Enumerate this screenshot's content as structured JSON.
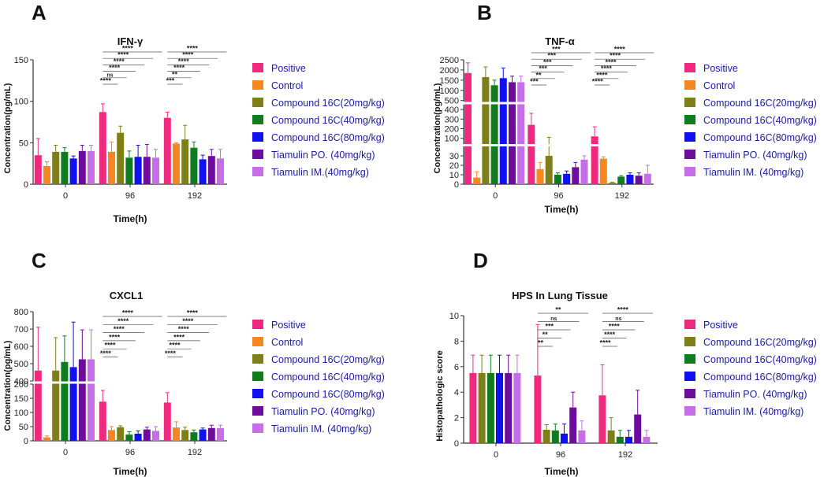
{
  "figure": {
    "panel_labels": [
      "A",
      "B",
      "C",
      "D"
    ]
  },
  "colors": {
    "Positive": "#ef2a7e",
    "Control": "#f6861f",
    "Compound 16C(20mg/kg)": "#7f7f1a",
    "Compound 16C(40mg/kg)": "#0f7d1f",
    "Compound 16C(80mg/kg)": "#1010f0",
    "Tiamulin PO. (40mg/kg)": "#6e0c9c",
    "Tiamulin IM. (40mg/kg)": "#c46ee8",
    "Tiamulin IM.(40mg/kg)": "#c46ee8"
  },
  "chart_data": [
    {
      "panel": "A",
      "type": "bar",
      "title": "IFN-γ",
      "xlabel": "Time(h)",
      "ylabel": "Concentration(pg/mL)",
      "categories": [
        "0",
        "96",
        "192"
      ],
      "ylim": [
        0,
        150
      ],
      "yticks": [
        0,
        50,
        100,
        150
      ],
      "series": [
        {
          "name": "Positive",
          "values": [
            35,
            87,
            80
          ],
          "errors": [
            20,
            10,
            7
          ]
        },
        {
          "name": "Control",
          "values": [
            22,
            39,
            49
          ],
          "errors": [
            5,
            12,
            1
          ]
        },
        {
          "name": "Compound 16C(20mg/kg)",
          "values": [
            39,
            62,
            54
          ],
          "errors": [
            8,
            8,
            17
          ]
        },
        {
          "name": "Compound 16C(40mg/kg)",
          "values": [
            39,
            32,
            44
          ],
          "errors": [
            5,
            8,
            7
          ]
        },
        {
          "name": "Compound 16C(80mg/kg)",
          "values": [
            31,
            33,
            30
          ],
          "errors": [
            3,
            14,
            5
          ]
        },
        {
          "name": "Tiamulin PO. (40mg/kg)",
          "values": [
            40,
            33,
            34
          ],
          "errors": [
            7,
            15,
            8
          ]
        },
        {
          "name": "Tiamulin IM.(40mg/kg)",
          "values": [
            40,
            32,
            31
          ],
          "errors": [
            7,
            10,
            11
          ]
        }
      ],
      "significance": [
        {
          "group": "96",
          "labels": [
            "****",
            "****",
            "****",
            "****",
            "ns",
            "****"
          ]
        },
        {
          "group": "192",
          "labels": [
            "****",
            "****",
            "****",
            "****",
            "**",
            "***"
          ]
        }
      ]
    },
    {
      "panel": "B",
      "type": "bar",
      "title": "TNF-α",
      "xlabel": "Time(h)",
      "ylabel": "Concentration(pg/mL)",
      "categories": [
        "0",
        "96",
        "192"
      ],
      "axis_segments": [
        {
          "range": [
            0,
            40
          ],
          "ticks": [
            0,
            10,
            20,
            30
          ]
        },
        {
          "range": [
            40,
            500
          ],
          "ticks": [
            100,
            200,
            300,
            400
          ]
        },
        {
          "range": [
            500,
            2500
          ],
          "ticks": [
            500,
            1000,
            1500,
            2000,
            2500
          ]
        }
      ],
      "series": [
        {
          "name": "Positive",
          "values": [
            1850,
            240,
            120
          ],
          "errors": [
            500,
            120,
            100
          ]
        },
        {
          "name": "Control",
          "values": [
            7,
            16,
            27
          ],
          "errors": [
            6,
            7,
            2
          ]
        },
        {
          "name": "Compound 16C(20mg/kg)",
          "values": [
            1650,
            30,
            1.5
          ],
          "errors": [
            500,
            80,
            0.5
          ]
        },
        {
          "name": "Compound 16C(40mg/kg)",
          "values": [
            1250,
            10,
            8
          ],
          "errors": [
            250,
            2,
            1
          ]
        },
        {
          "name": "Compound 16C(80mg/kg)",
          "values": [
            1600,
            11,
            10
          ],
          "errors": [
            500,
            3,
            2
          ]
        },
        {
          "name": "Tiamulin PO. (40mg/kg)",
          "values": [
            1400,
            18,
            9
          ],
          "errors": [
            300,
            5,
            3
          ]
        },
        {
          "name": "Tiamulin IM. (40mg/kg)",
          "values": [
            1400,
            26,
            11
          ],
          "errors": [
            300,
            4,
            9
          ]
        }
      ],
      "significance": [
        {
          "group": "96",
          "labels": [
            "***",
            "***",
            "***",
            "***",
            "**",
            "***"
          ]
        },
        {
          "group": "192",
          "labels": [
            "****",
            "****",
            "****",
            "****",
            "****",
            "****"
          ]
        }
      ]
    },
    {
      "panel": "C",
      "type": "bar",
      "title": "CXCL1",
      "xlabel": "Time(h)",
      "ylabel": "Concentration(pg/mL)",
      "categories": [
        "0",
        "96",
        "192"
      ],
      "axis_segments": [
        {
          "range": [
            0,
            200
          ],
          "ticks": [
            0,
            50,
            100,
            150,
            200
          ]
        },
        {
          "range": [
            400,
            800
          ],
          "ticks": [
            400,
            500,
            600,
            700,
            800
          ]
        }
      ],
      "series": [
        {
          "name": "Positive",
          "values": [
            460,
            138,
            135
          ],
          "errors": [
            250,
            40,
            35
          ]
        },
        {
          "name": "Control",
          "values": [
            12,
            38,
            47
          ],
          "errors": [
            5,
            12,
            20
          ]
        },
        {
          "name": "Compound 16C(20mg/kg)",
          "values": [
            460,
            48,
            38
          ],
          "errors": [
            190,
            5,
            10
          ]
        },
        {
          "name": "Compound 16C(40mg/kg)",
          "values": [
            510,
            22,
            30
          ],
          "errors": [
            150,
            10,
            8
          ]
        },
        {
          "name": "Compound 16C(80mg/kg)",
          "values": [
            480,
            25,
            40
          ],
          "errors": [
            260,
            10,
            5
          ]
        },
        {
          "name": "Tiamulin PO. (40mg/kg)",
          "values": [
            525,
            40,
            45
          ],
          "errors": [
            170,
            8,
            10
          ]
        },
        {
          "name": "Tiamulin IM. (40mg/kg)",
          "values": [
            525,
            35,
            45
          ],
          "errors": [
            170,
            15,
            10
          ]
        }
      ],
      "significance": [
        {
          "group": "96",
          "labels": [
            "****",
            "****",
            "****",
            "****",
            "****",
            "****"
          ]
        },
        {
          "group": "192",
          "labels": [
            "****",
            "****",
            "****",
            "****",
            "****",
            "****"
          ]
        }
      ]
    },
    {
      "panel": "D",
      "type": "bar",
      "title": "HPS In Lung Tissue",
      "xlabel": "Time(h)",
      "ylabel": "Histopathologic score",
      "categories": [
        "0",
        "96",
        "192"
      ],
      "ylim": [
        0,
        10
      ],
      "yticks": [
        0,
        2,
        4,
        6,
        8,
        10
      ],
      "series": [
        {
          "name": "Positive",
          "values": [
            5.5,
            5.3,
            3.75
          ],
          "errors": [
            1.4,
            4,
            2.4
          ]
        },
        {
          "name": "Compound 16C(20mg/kg)",
          "values": [
            5.5,
            1.05,
            1
          ],
          "errors": [
            1.4,
            0.4,
            1
          ]
        },
        {
          "name": "Compound 16C(40mg/kg)",
          "values": [
            5.5,
            1,
            0.5
          ],
          "errors": [
            1.4,
            0.5,
            0.5
          ]
        },
        {
          "name": "Compound 16C(80mg/kg)",
          "values": [
            5.5,
            0.75,
            0.5
          ],
          "errors": [
            1.4,
            0.75,
            0.5
          ]
        },
        {
          "name": "Tiamulin PO. (40mg/kg)",
          "values": [
            5.5,
            2.8,
            2.25
          ],
          "errors": [
            1.4,
            1.2,
            1.9
          ]
        },
        {
          "name": "Tiamulin IM. (40mg/kg)",
          "values": [
            5.5,
            1,
            0.5
          ],
          "errors": [
            1.4,
            0.75,
            0.5
          ]
        }
      ],
      "significance": [
        {
          "group": "96",
          "labels": [
            "**",
            "ns",
            "***",
            "**",
            "**"
          ]
        },
        {
          "group": "192",
          "labels": [
            "****",
            "ns",
            "****",
            "****",
            "****"
          ]
        }
      ]
    }
  ]
}
